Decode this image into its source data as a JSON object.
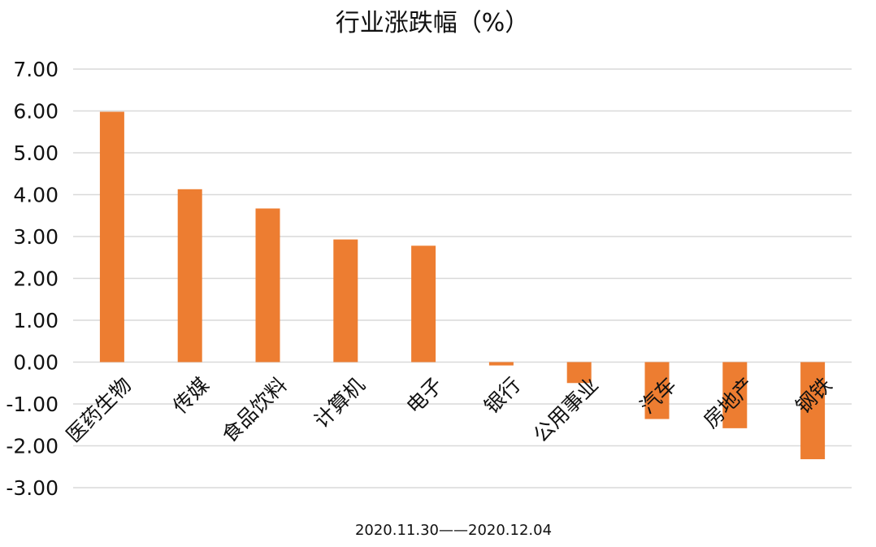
{
  "chart_data": {
    "type": "bar",
    "title": "行业涨跌幅（%）",
    "xlabel": "2020.11.30——2020.12.04",
    "ylabel": "",
    "categories": [
      "医药生物",
      "传媒",
      "食品饮料",
      "计算机",
      "电子",
      "银行",
      "公用事业",
      "汽车",
      "房地产",
      "钢铁"
    ],
    "values": [
      5.98,
      4.13,
      3.67,
      2.93,
      2.78,
      -0.08,
      -0.5,
      -1.36,
      -1.58,
      -2.32
    ],
    "ylim": [
      -3.0,
      7.0
    ],
    "yticks": [
      "7.00",
      "6.00",
      "5.00",
      "4.00",
      "3.00",
      "2.00",
      "1.00",
      "0.00",
      "-1.00",
      "-2.00",
      "-3.00"
    ],
    "grid": true,
    "legend": "none",
    "colors": {
      "bar": "#ed7d31",
      "grid": "#d9d9d9"
    }
  }
}
